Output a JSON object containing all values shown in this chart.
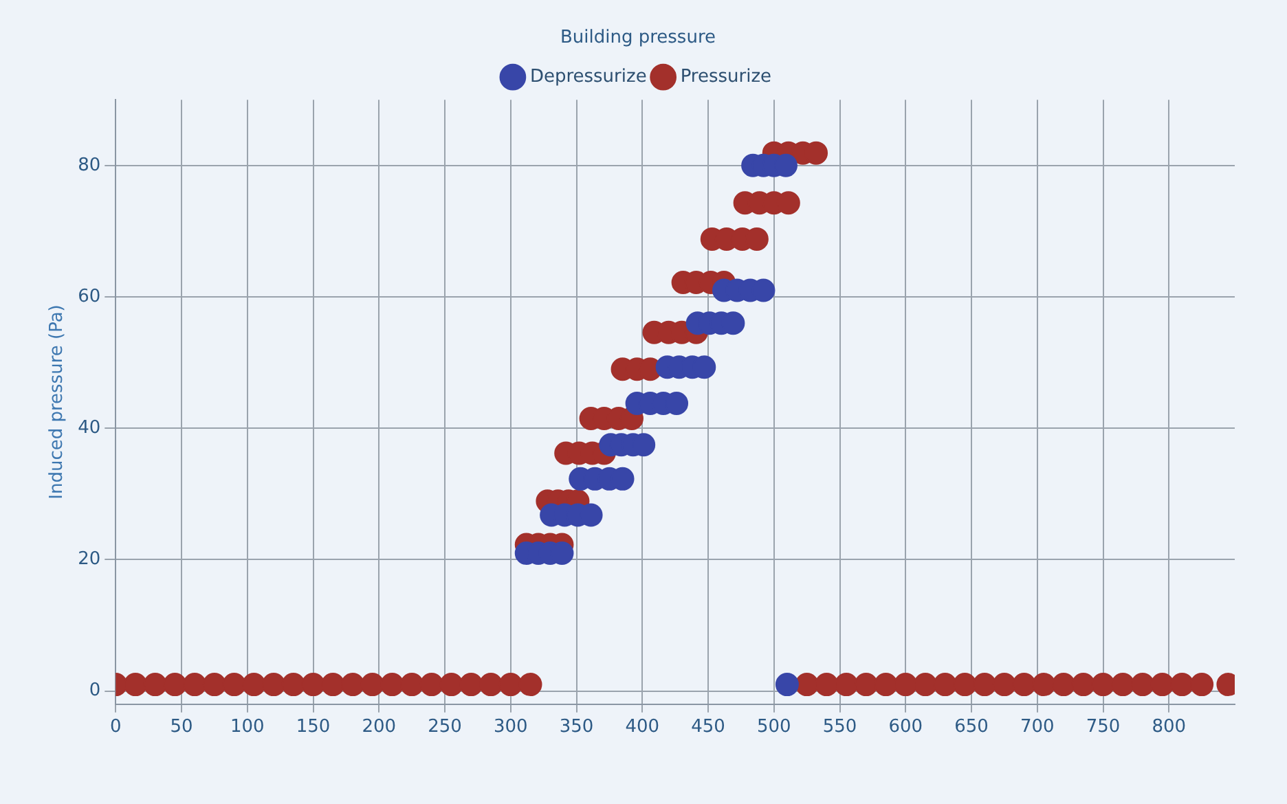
{
  "chart_data": {
    "type": "scatter",
    "title": "Building pressure",
    "ylabel": "Induced pressure (Pa)",
    "xlim": [
      0,
      850
    ],
    "xticks": [
      0,
      50,
      100,
      150,
      200,
      250,
      300,
      350,
      400,
      450,
      500,
      550,
      600,
      650,
      700,
      750,
      800
    ],
    "ylim": [
      -2,
      90
    ],
    "yticks": [
      0,
      20,
      40,
      60,
      80
    ],
    "grid": true,
    "legend": "top",
    "marker": "circle",
    "series": [
      {
        "name": "Depressurize",
        "color": "#3846a8",
        "x": [
          312,
          321,
          330,
          339,
          331,
          341,
          351,
          361,
          353,
          364,
          375,
          385,
          376,
          384,
          393,
          401,
          396,
          406,
          416,
          426,
          419,
          428,
          438,
          447,
          442,
          451,
          460,
          469,
          462,
          472,
          482,
          492,
          484,
          492,
          500,
          509,
          510
        ],
        "values": [
          21,
          21,
          21,
          21,
          26.8,
          26.8,
          26.8,
          26.8,
          32.3,
          32.3,
          32.3,
          32.3,
          37.5,
          37.5,
          37.5,
          37.5,
          43.8,
          43.8,
          43.8,
          43.8,
          49.3,
          49.3,
          49.3,
          49.3,
          56,
          56,
          56,
          56,
          61,
          61,
          61,
          61,
          80,
          80,
          80,
          80,
          1
        ]
      },
      {
        "name": "Pressurize",
        "color": "#a3302b",
        "x": [
          0,
          15,
          30,
          45,
          60,
          75,
          90,
          105,
          120,
          135,
          150,
          165,
          180,
          195,
          210,
          225,
          240,
          255,
          270,
          285,
          300,
          315,
          312,
          321,
          330,
          339,
          328,
          336,
          344,
          351,
          342,
          352,
          362,
          371,
          361,
          371,
          382,
          392,
          385,
          396,
          406,
          409,
          420,
          430,
          441,
          431,
          441,
          452,
          462,
          453,
          464,
          476,
          487,
          478,
          489,
          500,
          511,
          500,
          511,
          522,
          532,
          525,
          540,
          555,
          570,
          585,
          600,
          615,
          630,
          645,
          660,
          675,
          690,
          705,
          720,
          735,
          750,
          765,
          780,
          795,
          810,
          825,
          845
        ],
        "values": [
          1,
          1,
          1,
          1,
          1,
          1,
          1,
          1,
          1,
          1,
          1,
          1,
          1,
          1,
          1,
          1,
          1,
          1,
          1,
          1,
          1,
          1,
          22.3,
          22.3,
          22.3,
          22.3,
          28.9,
          28.9,
          28.9,
          28.9,
          36.2,
          36.2,
          36.2,
          36.2,
          41.5,
          41.5,
          41.5,
          41.5,
          49,
          49,
          49,
          54.6,
          54.6,
          54.6,
          54.6,
          62.2,
          62.2,
          62.2,
          62.2,
          68.8,
          68.8,
          68.8,
          68.8,
          74.3,
          74.3,
          74.3,
          74.3,
          81.9,
          81.9,
          81.9,
          81.9,
          1,
          1,
          1,
          1,
          1,
          1,
          1,
          1,
          1,
          1,
          1,
          1,
          1,
          1,
          1,
          1,
          1,
          1,
          1,
          1,
          1,
          1
        ]
      }
    ]
  }
}
